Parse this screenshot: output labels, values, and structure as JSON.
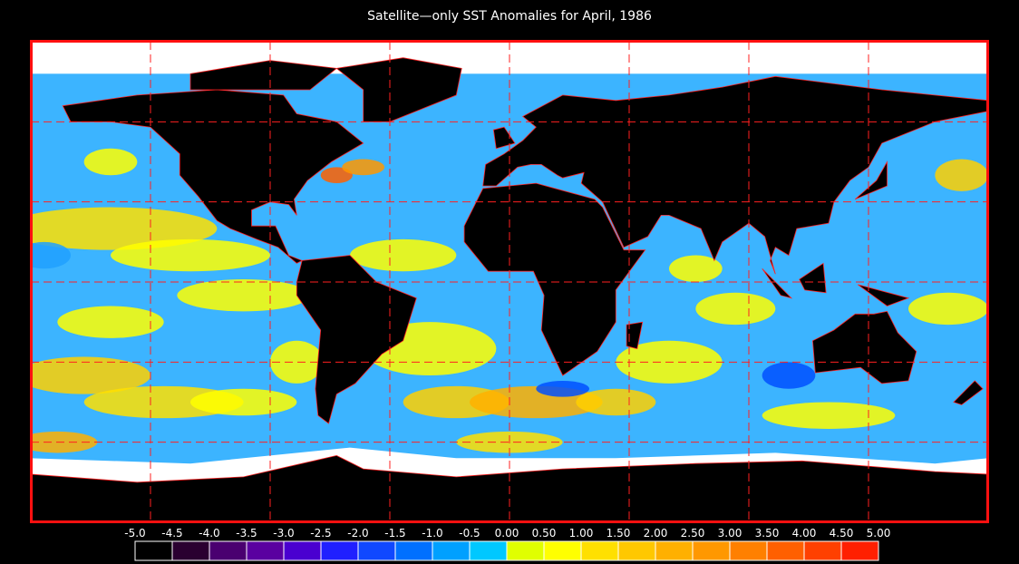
{
  "title": "Satellite—only SST Anomalies for April, 1986",
  "colorbar": {
    "labels": [
      "-5.0",
      "-4.5",
      "-4.0",
      "-3.5",
      "-3.0",
      "-2.5",
      "-2.0",
      "-1.5",
      "-1.0",
      "-0.5",
      "0.00",
      "0.50",
      "1.00",
      "1.50",
      "2.00",
      "2.50",
      "3.00",
      "3.50",
      "4.00",
      "4.50",
      "5.00"
    ],
    "colors": [
      "#000000",
      "#2a0030",
      "#4a0070",
      "#5a00a0",
      "#4a00d0",
      "#2020ff",
      "#1048ff",
      "#0070ff",
      "#00a0ff",
      "#00c8ff",
      "#e0ff00",
      "#ffff00",
      "#ffe000",
      "#ffc800",
      "#ffb000",
      "#ff9800",
      "#ff8000",
      "#ff6000",
      "#ff4000",
      "#ff2000"
    ]
  }
}
